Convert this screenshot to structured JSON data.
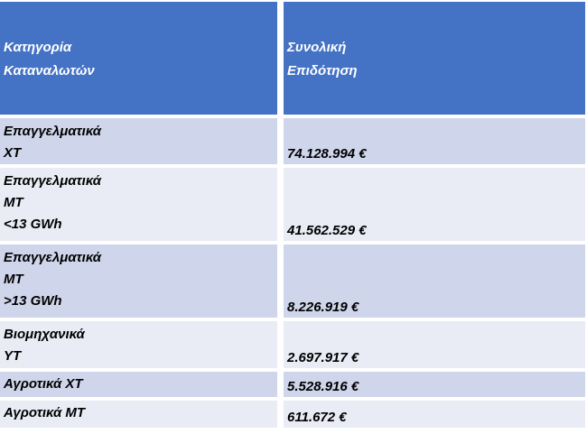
{
  "table": {
    "headers": [
      [
        "Κατηγορία",
        "Καταναλωτών"
      ],
      [
        "Συνολική",
        "Επιδότηση"
      ]
    ],
    "rows": [
      {
        "category": [
          "Επαγγελματικά",
          "ΧΤ"
        ],
        "value": "74.128.994 €"
      },
      {
        "category": [
          "Επαγγελματικά",
          "ΜΤ",
          "<13 GWh"
        ],
        "value": "41.562.529 €"
      },
      {
        "category": [
          "Επαγγελματικά",
          "ΜΤ",
          ">13 GWh"
        ],
        "value": "8.226.919 €"
      },
      {
        "category": [
          "Βιομηχανικά",
          "ΥΤ"
        ],
        "value": "2.697.917 €"
      },
      {
        "category": [
          "Αγροτικά ΧΤ"
        ],
        "value": "5.528.916 €"
      },
      {
        "category": [
          "Αγροτικά ΜΤ"
        ],
        "value": "611.672 €"
      }
    ]
  },
  "colors": {
    "header_bg": "#4472c4",
    "row_dark": "#cfd5ea",
    "row_light": "#e9ebf5"
  }
}
